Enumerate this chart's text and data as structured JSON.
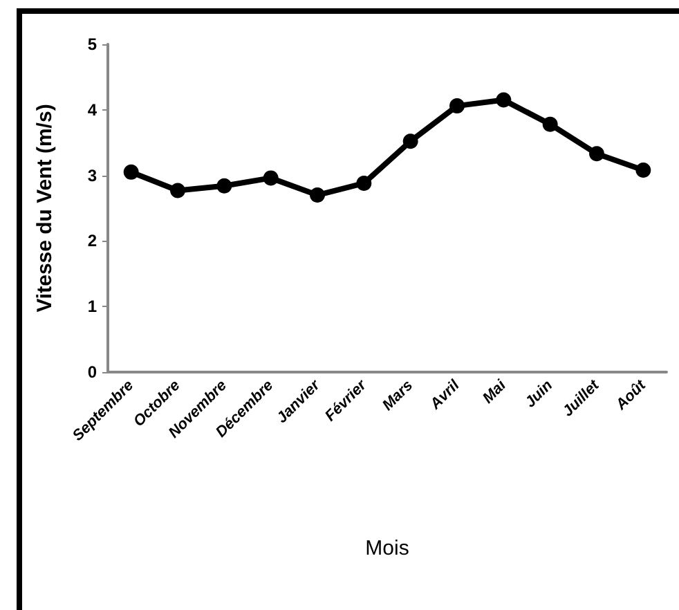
{
  "chart_data": {
    "type": "line",
    "xlabel": "Mois",
    "ylabel": "Vitesse du Vent (m/s)",
    "categories": [
      "Septembre",
      "Octobre",
      "Novembre",
      "Décembre",
      "Janvier",
      "Février",
      "Mars",
      "Avril",
      "Mai",
      "Juin",
      "Juillet",
      "Août"
    ],
    "series": [
      {
        "color": "#000000",
        "values": [
          3.05,
          2.77,
          2.84,
          2.96,
          2.7,
          2.88,
          3.52,
          4.06,
          4.15,
          3.78,
          3.33,
          3.08
        ]
      }
    ],
    "ylim": [
      0,
      5
    ],
    "yticks": [
      0,
      1,
      2,
      3,
      4,
      5
    ],
    "grid": false,
    "marker": "circle",
    "line_style": "solid"
  }
}
